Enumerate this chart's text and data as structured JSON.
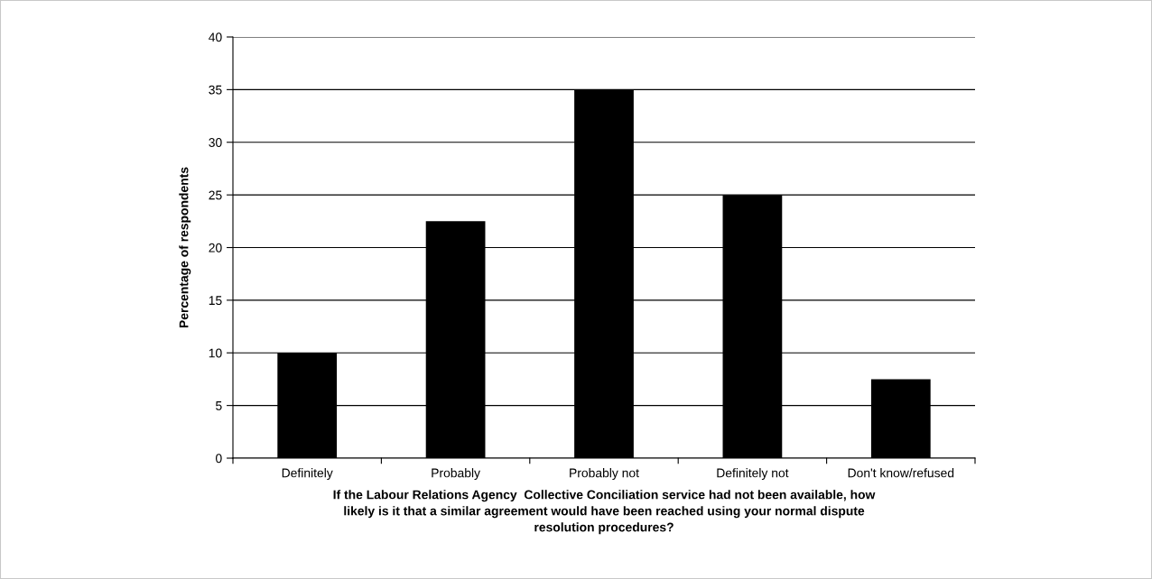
{
  "chart_data": {
    "type": "bar",
    "categories": [
      "Definitely",
      "Probably",
      "Probably not",
      "Definitely not",
      "Don't know/refused"
    ],
    "values": [
      10,
      22.5,
      35,
      25,
      7.5
    ],
    "color": "#000000",
    "ylabel": "Percentage of respondents",
    "xlabel": "If the Labour Relations Agency  Collective Conciliation service had not been available, how\nlikely is it that a similar agreement would have been reached using your normal dispute\nresolution procedures?",
    "ylim": [
      0,
      40
    ],
    "yticks": [
      0,
      5,
      10,
      15,
      20,
      25,
      30,
      35,
      40
    ],
    "grid": "y"
  }
}
